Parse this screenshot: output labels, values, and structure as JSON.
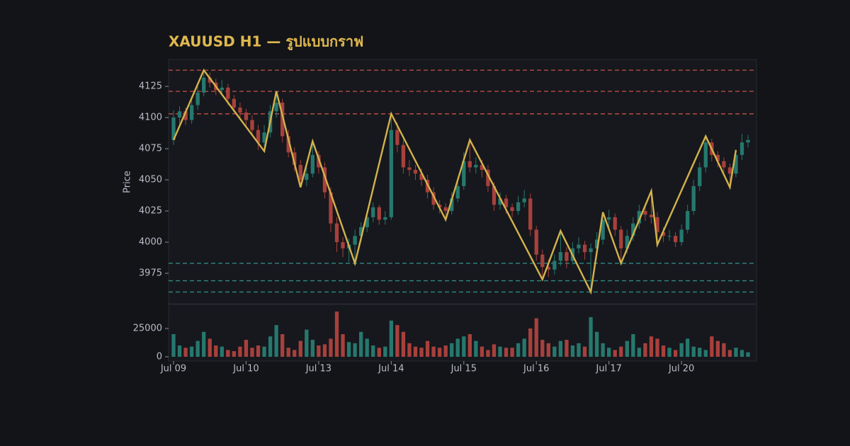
{
  "chart_data": {
    "type": "candlestick",
    "title": "XAUUSD H1 — รูปแบบกราฟ",
    "ylabel": "Price",
    "up_color": "#26786e",
    "down_color": "#a8403c",
    "ohlc": [
      [
        4082,
        4106,
        4078,
        4100
      ],
      [
        4100,
        4109,
        4095,
        4105
      ],
      [
        4105,
        4108,
        4094,
        4098
      ],
      [
        4098,
        4114,
        4095,
        4110
      ],
      [
        4110,
        4125,
        4106,
        4120
      ],
      [
        4120,
        4138,
        4117,
        4132
      ],
      [
        4132,
        4136,
        4124,
        4128
      ],
      [
        4128,
        4131,
        4118,
        4122
      ],
      [
        4122,
        4130,
        4119,
        4124
      ],
      [
        4124,
        4127,
        4110,
        4115
      ],
      [
        4115,
        4118,
        4104,
        4108
      ],
      [
        4108,
        4112,
        4100,
        4104
      ],
      [
        4104,
        4107,
        4093,
        4098
      ],
      [
        4098,
        4102,
        4085,
        4090
      ],
      [
        4090,
        4094,
        4074,
        4080
      ],
      [
        4080,
        4094,
        4073,
        4088
      ],
      [
        4088,
        4110,
        4084,
        4105
      ],
      [
        4105,
        4121,
        4100,
        4112
      ],
      [
        4112,
        4115,
        4080,
        4085
      ],
      [
        4085,
        4090,
        4068,
        4072
      ],
      [
        4072,
        4076,
        4057,
        4062
      ],
      [
        4062,
        4066,
        4044,
        4050
      ],
      [
        4050,
        4060,
        4045,
        4055
      ],
      [
        4055,
        4081,
        4052,
        4070
      ],
      [
        4070,
        4073,
        4055,
        4060
      ],
      [
        4060,
        4064,
        4035,
        4040
      ],
      [
        4040,
        4044,
        4008,
        4015
      ],
      [
        4015,
        4020,
        3992,
        4000
      ],
      [
        4000,
        4004,
        3988,
        3995
      ],
      [
        3995,
        4003,
        3984,
        3998
      ],
      [
        3998,
        4010,
        3983,
        4005
      ],
      [
        4005,
        4016,
        4000,
        4012
      ],
      [
        4012,
        4024,
        4008,
        4020
      ],
      [
        4020,
        4032,
        4016,
        4028
      ],
      [
        4028,
        4030,
        4014,
        4018
      ],
      [
        4018,
        4025,
        4014,
        4020
      ],
      [
        4020,
        4103,
        4018,
        4090
      ],
      [
        4090,
        4096,
        4072,
        4078
      ],
      [
        4078,
        4082,
        4055,
        4060
      ],
      [
        4060,
        4066,
        4053,
        4058
      ],
      [
        4058,
        4062,
        4050,
        4055
      ],
      [
        4055,
        4059,
        4045,
        4050
      ],
      [
        4050,
        4054,
        4035,
        4040
      ],
      [
        4040,
        4044,
        4026,
        4030
      ],
      [
        4030,
        4034,
        4023,
        4028
      ],
      [
        4028,
        4031,
        4018,
        4025
      ],
      [
        4025,
        4040,
        4022,
        4035
      ],
      [
        4035,
        4050,
        4032,
        4045
      ],
      [
        4045,
        4072,
        4042,
        4065
      ],
      [
        4065,
        4082,
        4056,
        4060
      ],
      [
        4060,
        4068,
        4055,
        4062
      ],
      [
        4062,
        4066,
        4052,
        4058
      ],
      [
        4058,
        4062,
        4040,
        4045
      ],
      [
        4045,
        4048,
        4025,
        4030
      ],
      [
        4030,
        4040,
        4026,
        4035
      ],
      [
        4035,
        4038,
        4023,
        4028
      ],
      [
        4028,
        4031,
        4020,
        4025
      ],
      [
        4025,
        4037,
        4022,
        4032
      ],
      [
        4032,
        4042,
        4028,
        4035
      ],
      [
        4035,
        4039,
        4005,
        4010
      ],
      [
        4010,
        4013,
        3985,
        3990
      ],
      [
        3990,
        3994,
        3970,
        3980
      ],
      [
        3980,
        3986,
        3972,
        3978
      ],
      [
        3978,
        3990,
        3974,
        3985
      ],
      [
        3985,
        4009,
        3981,
        3992
      ],
      [
        3992,
        3996,
        3979,
        3985
      ],
      [
        3985,
        4000,
        3982,
        3995
      ],
      [
        3995,
        4004,
        3991,
        3998
      ],
      [
        3998,
        4001,
        3986,
        3992
      ],
      [
        3992,
        3999,
        3960,
        3995
      ],
      [
        3995,
        4008,
        3990,
        4002
      ],
      [
        4002,
        4024,
        3998,
        4018
      ],
      [
        4018,
        4026,
        4012,
        4020
      ],
      [
        4020,
        4023,
        4005,
        4010
      ],
      [
        4010,
        4013,
        3983,
        3995
      ],
      [
        3995,
        4010,
        3991,
        4005
      ],
      [
        4005,
        4020,
        4001,
        4015
      ],
      [
        4015,
        4030,
        4011,
        4025
      ],
      [
        4025,
        4029,
        4017,
        4022
      ],
      [
        4022,
        4041,
        4015,
        4020
      ],
      [
        4020,
        4024,
        3998,
        4008
      ],
      [
        4008,
        4012,
        4000,
        4005
      ],
      [
        4005,
        4010,
        4001,
        4005
      ],
      [
        4005,
        4008,
        3996,
        4000
      ],
      [
        4000,
        4014,
        3997,
        4010
      ],
      [
        4010,
        4030,
        4007,
        4025
      ],
      [
        4025,
        4050,
        4022,
        4045
      ],
      [
        4045,
        4064,
        4041,
        4060
      ],
      [
        4060,
        4085,
        4056,
        4080
      ],
      [
        4080,
        4083,
        4065,
        4070
      ],
      [
        4070,
        4073,
        4060,
        4065
      ],
      [
        4065,
        4068,
        4056,
        4060
      ],
      [
        4060,
        4063,
        4044,
        4055
      ],
      [
        4055,
        4074,
        4052,
        4070
      ],
      [
        4070,
        4087,
        4066,
        4080
      ],
      [
        4080,
        4086,
        4076,
        4082
      ]
    ],
    "volume": [
      20000,
      10000,
      8000,
      9000,
      14000,
      22000,
      16000,
      10000,
      9000,
      6000,
      5000,
      9000,
      15000,
      8000,
      10000,
      9000,
      18000,
      28000,
      20000,
      8000,
      6000,
      14000,
      24000,
      15000,
      10000,
      11000,
      16000,
      40000,
      20000,
      13000,
      12000,
      22000,
      16000,
      10000,
      8000,
      9000,
      32000,
      28000,
      22000,
      12000,
      9000,
      8000,
      14000,
      9000,
      8000,
      10000,
      12000,
      16000,
      18000,
      20000,
      14000,
      9000,
      6000,
      11000,
      9000,
      8000,
      8000,
      12000,
      16000,
      25000,
      34000,
      15000,
      12000,
      9000,
      14000,
      15000,
      10000,
      12000,
      9000,
      35000,
      22000,
      12000,
      8000,
      6000,
      9000,
      14000,
      20000,
      8000,
      12000,
      18000,
      16000,
      10000,
      8000,
      6000,
      12000,
      16000,
      9000,
      8000,
      6000,
      18000,
      14000,
      12000,
      6000,
      8000,
      6000,
      4000
    ],
    "xlim": [
      -0.82,
      96.4
    ],
    "xticks": [
      {
        "value": 0,
        "label": "Jul 09"
      },
      {
        "value": 12,
        "label": "Jul 10"
      },
      {
        "value": 24,
        "label": "Jul 13"
      },
      {
        "value": 36,
        "label": "Jul 14"
      },
      {
        "value": 48,
        "label": "Jul 15"
      },
      {
        "value": 60,
        "label": "Jul 16"
      },
      {
        "value": 72,
        "label": "Jul 17"
      },
      {
        "value": 84,
        "label": "Jul 20"
      }
    ],
    "ylim": [
      3950.6,
      4146.6
    ],
    "yticks": [
      3975,
      4000,
      4025,
      4050,
      4075,
      4100,
      4125
    ],
    "volume_ylim": [
      -3750,
      46250
    ],
    "volume_yticks": [
      0,
      25000
    ],
    "levels": [
      {
        "value": 4138,
        "color": "#b84a45"
      },
      {
        "value": 4121,
        "color": "#b84a45"
      },
      {
        "value": 4103,
        "color": "#b84a45"
      },
      {
        "value": 3983,
        "color": "#2e8a86"
      },
      {
        "value": 3969,
        "color": "#2e8a86"
      },
      {
        "value": 3960,
        "color": "#2e8a86"
      }
    ],
    "zigzag": {
      "color": "#d4b24c",
      "x": [
        0,
        5,
        15,
        17,
        21,
        23,
        30,
        36,
        45,
        49,
        61,
        64,
        69,
        71,
        74,
        79,
        80,
        88,
        92,
        93
      ],
      "y": [
        4082,
        4138,
        4073,
        4121,
        4044,
        4081,
        3983,
        4103,
        4018,
        4082,
        3970,
        4009,
        3960,
        4024,
        3983,
        4041,
        3998,
        4085,
        4044,
        4074
      ]
    }
  }
}
